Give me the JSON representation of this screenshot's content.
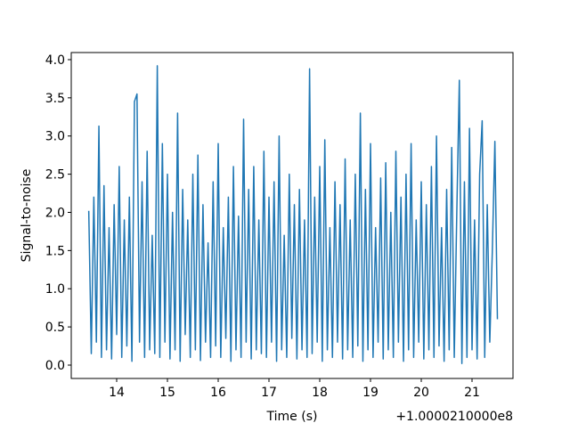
{
  "chart_data": {
    "type": "line",
    "xlabel": "Time (s)",
    "ylabel": "Signal-to-noise",
    "x_offset_label": "+1.0000210000e8",
    "xlim": [
      13.105,
      21.807
    ],
    "ylim": [
      -0.175,
      4.093
    ],
    "xticks": [
      14,
      15,
      16,
      17,
      18,
      19,
      20,
      21
    ],
    "yticks": [
      {
        "value": 0,
        "label": "0.0"
      },
      {
        "value": 0.5,
        "label": "0.5"
      },
      {
        "value": 1,
        "label": "1.0"
      },
      {
        "value": 1.5,
        "label": "1.5"
      },
      {
        "value": 2,
        "label": "2.0"
      },
      {
        "value": 2.5,
        "label": "2.5"
      },
      {
        "value": 3,
        "label": "3.0"
      },
      {
        "value": 3.5,
        "label": "3.5"
      },
      {
        "value": 4,
        "label": "4.0"
      }
    ],
    "grid": false,
    "series": [
      {
        "color": "#1f77b4",
        "x": [
          13.45,
          13.5,
          13.55,
          13.6,
          13.65,
          13.7,
          13.75,
          13.8,
          13.85,
          13.9,
          13.95,
          14.0,
          14.05,
          14.1,
          14.15,
          14.2,
          14.25,
          14.3,
          14.35,
          14.4,
          14.45,
          14.5,
          14.55,
          14.6,
          14.65,
          14.7,
          14.75,
          14.8,
          14.85,
          14.9,
          14.95,
          15.0,
          15.05,
          15.1,
          15.15,
          15.2,
          15.25,
          15.3,
          15.35,
          15.4,
          15.45,
          15.5,
          15.55,
          15.6,
          15.65,
          15.7,
          15.75,
          15.8,
          15.85,
          15.9,
          15.95,
          16.0,
          16.05,
          16.1,
          16.15,
          16.2,
          16.25,
          16.3,
          16.35,
          16.4,
          16.45,
          16.5,
          16.55,
          16.6,
          16.65,
          16.7,
          16.75,
          16.8,
          16.85,
          16.9,
          16.95,
          17.0,
          17.05,
          17.1,
          17.15,
          17.2,
          17.25,
          17.3,
          17.35,
          17.4,
          17.45,
          17.5,
          17.55,
          17.6,
          17.65,
          17.7,
          17.75,
          17.8,
          17.85,
          17.9,
          17.95,
          18.0,
          18.05,
          18.1,
          18.15,
          18.2,
          18.25,
          18.3,
          18.35,
          18.4,
          18.45,
          18.5,
          18.55,
          18.6,
          18.65,
          18.7,
          18.75,
          18.8,
          18.85,
          18.9,
          18.95,
          19.0,
          19.05,
          19.1,
          19.15,
          19.2,
          19.25,
          19.3,
          19.35,
          19.4,
          19.45,
          19.5,
          19.55,
          19.6,
          19.65,
          19.7,
          19.75,
          19.8,
          19.85,
          19.9,
          19.95,
          20.0,
          20.05,
          20.1,
          20.15,
          20.2,
          20.25,
          20.3,
          20.35,
          20.4,
          20.45,
          20.5,
          20.55,
          20.6,
          20.65,
          20.7,
          20.75,
          20.8,
          20.85,
          20.9,
          20.95,
          21.0,
          21.05,
          21.1,
          21.15,
          21.2,
          21.25,
          21.3,
          21.35,
          21.4,
          21.45,
          21.5
        ],
        "values": [
          2.02,
          0.15,
          2.2,
          0.3,
          3.13,
          0.1,
          2.35,
          0.2,
          1.8,
          0.08,
          2.1,
          0.4,
          2.6,
          0.1,
          1.9,
          0.25,
          2.2,
          0.05,
          3.45,
          3.55,
          0.3,
          2.4,
          0.1,
          2.8,
          0.2,
          1.7,
          0.15,
          3.92,
          0.1,
          2.9,
          0.3,
          2.5,
          0.08,
          2.0,
          0.2,
          3.3,
          0.05,
          2.3,
          0.4,
          1.9,
          0.1,
          2.5,
          0.2,
          2.75,
          0.06,
          2.1,
          0.3,
          1.6,
          0.1,
          2.4,
          0.25,
          2.9,
          0.1,
          1.8,
          0.35,
          2.2,
          0.05,
          2.6,
          0.2,
          1.95,
          0.1,
          3.22,
          0.3,
          2.3,
          0.08,
          2.6,
          0.2,
          1.9,
          0.15,
          2.8,
          0.1,
          2.2,
          0.3,
          2.4,
          0.05,
          3.0,
          0.2,
          1.7,
          0.1,
          2.5,
          0.35,
          2.1,
          0.08,
          2.3,
          0.2,
          1.9,
          0.1,
          3.88,
          0.15,
          2.2,
          0.3,
          2.6,
          0.05,
          2.95,
          0.2,
          1.8,
          0.1,
          2.4,
          0.3,
          2.1,
          0.08,
          2.7,
          0.2,
          1.9,
          0.1,
          2.5,
          0.25,
          3.3,
          0.05,
          2.3,
          0.2,
          2.9,
          0.1,
          1.8,
          0.3,
          2.45,
          0.08,
          2.65,
          0.2,
          2.0,
          0.1,
          2.8,
          0.3,
          2.2,
          0.05,
          2.5,
          0.2,
          2.9,
          0.1,
          1.9,
          0.3,
          2.4,
          0.08,
          2.1,
          0.2,
          2.6,
          0.1,
          3.0,
          0.25,
          1.8,
          0.05,
          2.3,
          0.2,
          2.85,
          0.1,
          2.0,
          3.73,
          0.02,
          2.4,
          0.1,
          3.1,
          0.2,
          1.9,
          0.08,
          2.5,
          3.2,
          0.1,
          2.1,
          0.3,
          1.5,
          2.93,
          0.6
        ]
      }
    ]
  }
}
